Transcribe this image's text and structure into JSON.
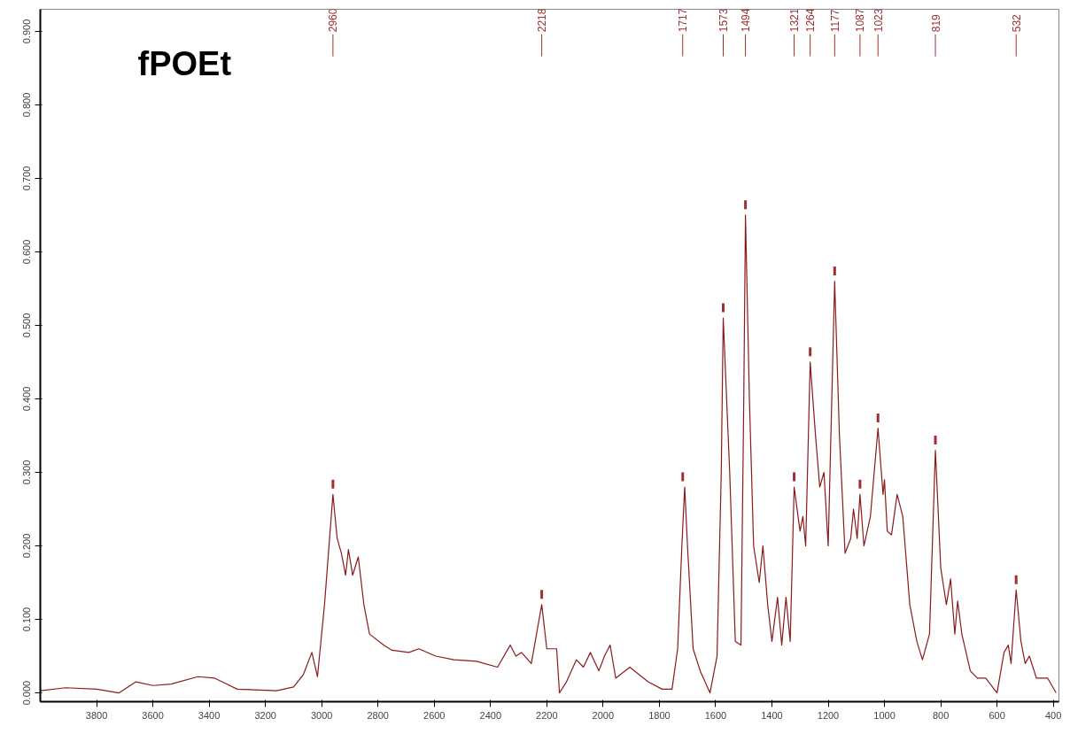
{
  "chart_data": {
    "type": "line",
    "title": "fPOEt",
    "series": [
      {
        "color": "#8b1a1a",
        "x": [
          4000,
          3910,
          3800,
          3720,
          3660,
          3600,
          3535,
          3440,
          3380,
          3300,
          3160,
          3100,
          3065,
          3035,
          3015,
          2990,
          2960,
          2945,
          2930,
          2915,
          2905,
          2890,
          2870,
          2850,
          2830,
          2780,
          2750,
          2690,
          2655,
          2595,
          2530,
          2450,
          2375,
          2330,
          2310,
          2290,
          2255,
          2218,
          2200,
          2165,
          2155,
          2130,
          2095,
          2070,
          2045,
          2015,
          1995,
          1975,
          1955,
          1905,
          1840,
          1790,
          1755,
          1735,
          1720,
          1710,
          1700,
          1680,
          1655,
          1620,
          1595,
          1580,
          1573,
          1550,
          1530,
          1510,
          1500,
          1494,
          1480,
          1465,
          1445,
          1432,
          1415,
          1400,
          1380,
          1365,
          1350,
          1335,
          1321,
          1300,
          1290,
          1280,
          1264,
          1245,
          1230,
          1215,
          1200,
          1177,
          1160,
          1140,
          1120,
          1110,
          1097,
          1087,
          1073,
          1050,
          1023,
          1005,
          1000,
          990,
          975,
          955,
          935,
          910,
          885,
          865,
          840,
          819,
          800,
          780,
          765,
          750,
          740,
          725,
          695,
          670,
          640,
          600,
          575,
          560,
          550,
          532,
          515,
          500,
          485,
          460,
          420,
          390
        ],
        "values": [
          0.003,
          0.007,
          0.005,
          0.0,
          0.015,
          0.01,
          0.012,
          0.022,
          0.02,
          0.005,
          0.003,
          0.008,
          0.025,
          0.055,
          0.022,
          0.12,
          0.27,
          0.21,
          0.19,
          0.16,
          0.195,
          0.16,
          0.185,
          0.12,
          0.08,
          0.065,
          0.058,
          0.055,
          0.06,
          0.05,
          0.045,
          0.043,
          0.035,
          0.065,
          0.05,
          0.055,
          0.04,
          0.12,
          0.06,
          0.06,
          0.0,
          0.015,
          0.045,
          0.035,
          0.055,
          0.03,
          0.05,
          0.065,
          0.02,
          0.035,
          0.015,
          0.005,
          0.005,
          0.06,
          0.2,
          0.28,
          0.2,
          0.06,
          0.03,
          0.0,
          0.05,
          0.3,
          0.51,
          0.3,
          0.07,
          0.065,
          0.4,
          0.65,
          0.4,
          0.2,
          0.15,
          0.2,
          0.12,
          0.07,
          0.13,
          0.065,
          0.13,
          0.07,
          0.28,
          0.22,
          0.24,
          0.2,
          0.45,
          0.35,
          0.28,
          0.3,
          0.2,
          0.56,
          0.35,
          0.19,
          0.21,
          0.25,
          0.21,
          0.27,
          0.2,
          0.24,
          0.36,
          0.27,
          0.29,
          0.22,
          0.215,
          0.27,
          0.24,
          0.12,
          0.07,
          0.045,
          0.08,
          0.33,
          0.17,
          0.12,
          0.155,
          0.08,
          0.125,
          0.08,
          0.03,
          0.02,
          0.02,
          0.0,
          0.055,
          0.065,
          0.04,
          0.14,
          0.07,
          0.04,
          0.05,
          0.02,
          0.02,
          0.0
        ]
      },
      {
        "type": "scatter",
        "color": "#a03030",
        "x": [
          2960,
          2218,
          1717,
          1573,
          1494,
          1321,
          1264,
          1177,
          1087,
          1023,
          819,
          532
        ],
        "values": [
          0.284,
          0.134,
          0.294,
          0.524,
          0.664,
          0.294,
          0.464,
          0.574,
          0.284,
          0.374,
          0.344,
          0.154
        ]
      }
    ],
    "xlim": [
      4000,
      380
    ],
    "ylim": [
      -0.012,
      0.93
    ],
    "xticks": [
      3800,
      3600,
      3400,
      3200,
      3000,
      2800,
      2600,
      2400,
      2200,
      2000,
      1800,
      1600,
      1400,
      1200,
      1000,
      800,
      600,
      400
    ],
    "yticks": [
      {
        "value": 0,
        "label": "0.000"
      },
      {
        "value": 0.1,
        "label": "0.100"
      },
      {
        "value": 0.2,
        "label": "0.200"
      },
      {
        "value": 0.3,
        "label": "0.300"
      },
      {
        "value": 0.4,
        "label": "0.400"
      },
      {
        "value": 0.5,
        "label": "0.500"
      },
      {
        "value": 0.6,
        "label": "0.600"
      },
      {
        "value": 0.7,
        "label": "0.700"
      },
      {
        "value": 0.8,
        "label": "0.800"
      },
      {
        "value": 0.9,
        "label": "0.900"
      }
    ],
    "grid": false,
    "ref_lines": [
      {
        "axis": "x",
        "value": 2960,
        "label": "2960"
      },
      {
        "axis": "x",
        "value": 2218,
        "label": "2218"
      },
      {
        "axis": "x",
        "value": 1717,
        "label": "1717"
      },
      {
        "axis": "x",
        "value": 1573,
        "label": "1573"
      },
      {
        "axis": "x",
        "value": 1494,
        "label": "1494"
      },
      {
        "axis": "x",
        "value": 1321,
        "label": "1321"
      },
      {
        "axis": "x",
        "value": 1264,
        "label": "1264"
      },
      {
        "axis": "x",
        "value": 1177,
        "label": "1177"
      },
      {
        "axis": "x",
        "value": 1087,
        "label": "1087"
      },
      {
        "axis": "x",
        "value": 1023,
        "label": "1023"
      },
      {
        "axis": "x",
        "value": 819,
        "label": "819"
      },
      {
        "axis": "x",
        "value": 532,
        "label": "532"
      }
    ]
  }
}
